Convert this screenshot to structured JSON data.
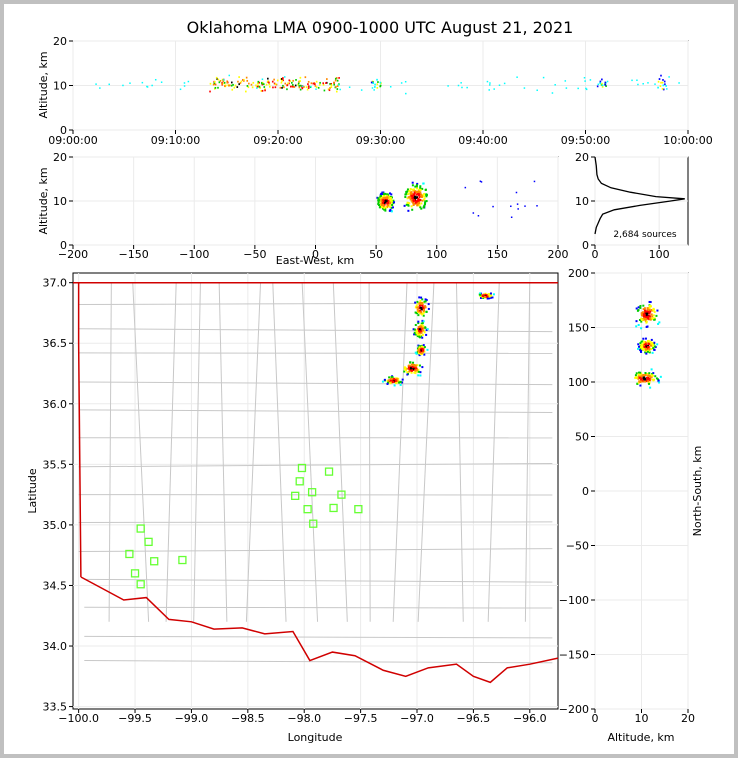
{
  "chart_data": {
    "type": "scatter",
    "title": "Oklahoma LMA 0900-1000 UTC August 21, 2021",
    "colors": {
      "map_border": "#d00000",
      "county_lines": "#c8c8c8",
      "stations": "#66ff33",
      "density_ramp": [
        "#00ffff",
        "#0000ff",
        "#00cc00",
        "#ffff00",
        "#ff8800",
        "#ff0000",
        "#000000"
      ]
    },
    "time_height": {
      "ylabel": "Altitude, km",
      "ylim": [
        0,
        20
      ],
      "yticks": [
        "0",
        "10",
        "20"
      ],
      "xticks": [
        "09:00:00",
        "09:10:00",
        "09:20:00",
        "09:30:00",
        "09:40:00",
        "09:50:00",
        "10:00:00"
      ],
      "activity_windows_min": [
        [
          13,
          16
        ],
        [
          16,
          19
        ],
        [
          19,
          22
        ],
        [
          22,
          26
        ],
        [
          29,
          30
        ],
        [
          51,
          52
        ],
        [
          57,
          58
        ]
      ]
    },
    "ew_altitude": {
      "xlabel": "East-West, km",
      "ylabel": "Altitude, km",
      "xlim": [
        -200,
        200
      ],
      "ylim": [
        0,
        20
      ],
      "xticks": [
        "−200",
        "−150",
        "−100",
        "−50",
        "0",
        "50",
        "100",
        "150",
        "200"
      ],
      "yticks": [
        "0",
        "10",
        "20"
      ],
      "clusters": [
        {
          "x": 57,
          "y": 10,
          "spread_x": 6,
          "spread_y": 2
        },
        {
          "x": 82,
          "y": 11,
          "spread_x": 9,
          "spread_y": 3
        }
      ]
    },
    "altitude_histogram": {
      "xticks": [
        "0",
        "100"
      ],
      "yticks": [
        "0",
        "10",
        "20"
      ],
      "xlim": [
        0,
        145
      ],
      "ylim": [
        0,
        20
      ],
      "source_count_label": "2,684 sources",
      "profile": [
        {
          "alt": 2.5,
          "count": 0
        },
        {
          "alt": 4,
          "count": 2
        },
        {
          "alt": 5,
          "count": 5
        },
        {
          "alt": 6,
          "count": 8
        },
        {
          "alt": 7,
          "count": 12
        },
        {
          "alt": 8,
          "count": 30
        },
        {
          "alt": 9,
          "count": 70
        },
        {
          "alt": 10,
          "count": 118
        },
        {
          "alt": 10.5,
          "count": 140
        },
        {
          "alt": 11,
          "count": 95
        },
        {
          "alt": 12,
          "count": 55
        },
        {
          "alt": 13,
          "count": 25
        },
        {
          "alt": 14,
          "count": 10
        },
        {
          "alt": 15,
          "count": 5
        },
        {
          "alt": 16,
          "count": 3
        },
        {
          "alt": 18,
          "count": 2
        },
        {
          "alt": 20,
          "count": 0
        }
      ]
    },
    "plan_view": {
      "xlabel": "Longitude",
      "ylabel": "Latitude",
      "xlim": [
        -100.05,
        -95.75
      ],
      "ylim": [
        33.48,
        37.08
      ],
      "xticks": [
        "−100.0",
        "−99.5",
        "−99.0",
        "−98.5",
        "−98.0",
        "−97.5",
        "−97.0",
        "−96.5",
        "−96.0"
      ],
      "yticks": [
        "33.5",
        "34.0",
        "34.5",
        "35.0",
        "35.5",
        "36.0",
        "36.5",
        "37.0"
      ],
      "stations": [
        {
          "lon": -99.45,
          "lat": 34.97
        },
        {
          "lon": -99.38,
          "lat": 34.86
        },
        {
          "lon": -99.55,
          "lat": 34.76
        },
        {
          "lon": -99.33,
          "lat": 34.7
        },
        {
          "lon": -99.5,
          "lat": 34.6
        },
        {
          "lon": -99.45,
          "lat": 34.51
        },
        {
          "lon": -99.08,
          "lat": 34.71
        },
        {
          "lon": -98.02,
          "lat": 35.47
        },
        {
          "lon": -97.78,
          "lat": 35.44
        },
        {
          "lon": -98.04,
          "lat": 35.36
        },
        {
          "lon": -97.93,
          "lat": 35.27
        },
        {
          "lon": -98.08,
          "lat": 35.24
        },
        {
          "lon": -97.67,
          "lat": 35.25
        },
        {
          "lon": -97.97,
          "lat": 35.13
        },
        {
          "lon": -97.74,
          "lat": 35.14
        },
        {
          "lon": -97.52,
          "lat": 35.13
        },
        {
          "lon": -97.92,
          "lat": 35.01
        }
      ],
      "clusters": [
        {
          "lon": -96.97,
          "lat": 36.8,
          "spread_lon": 0.06,
          "spread_lat": 0.07
        },
        {
          "lon": -96.98,
          "lat": 36.62,
          "spread_lon": 0.05,
          "spread_lat": 0.06
        },
        {
          "lon": -96.97,
          "lat": 36.45,
          "spread_lon": 0.04,
          "spread_lat": 0.04
        },
        {
          "lon": -97.05,
          "lat": 36.3,
          "spread_lon": 0.08,
          "spread_lat": 0.05
        },
        {
          "lon": -97.22,
          "lat": 36.2,
          "spread_lon": 0.07,
          "spread_lat": 0.03
        },
        {
          "lon": -96.4,
          "lat": 36.9,
          "spread_lon": 0.06,
          "spread_lat": 0.02
        }
      ]
    },
    "ns_altitude": {
      "xlabel": "Altitude, km",
      "ylabel": "North-South, km",
      "xlim": [
        0,
        20
      ],
      "ylim": [
        -200,
        200
      ],
      "xticks": [
        "0",
        "10",
        "20"
      ],
      "yticks": [
        "−200",
        "−150",
        "−100",
        "−50",
        "0",
        "50",
        "100",
        "150",
        "200"
      ],
      "clusters": [
        {
          "x": 11,
          "y": 163,
          "spread_x": 2,
          "spread_y": 10
        },
        {
          "x": 11,
          "y": 134,
          "spread_x": 1.5,
          "spread_y": 6
        },
        {
          "x": 10.5,
          "y": 104,
          "spread_x": 2.5,
          "spread_y": 6
        }
      ]
    }
  }
}
